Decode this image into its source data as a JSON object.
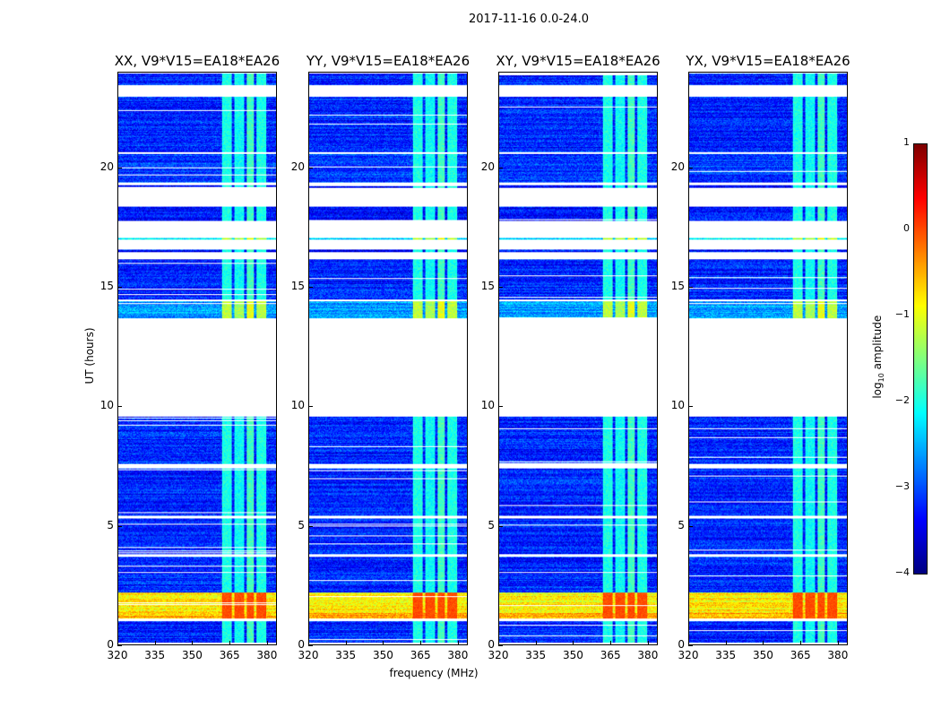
{
  "chart_data": {
    "type": "heatmap",
    "title": "2017-11-16 0.0-24.0",
    "xlabel": "frequency (MHz)",
    "ylabel": "UT (hours)",
    "xlim": [
      320,
      384
    ],
    "ylim": [
      0,
      24
    ],
    "xticks": [
      320,
      335,
      350,
      365,
      380
    ],
    "yticks": [
      0,
      5,
      10,
      15,
      20
    ],
    "panels": [
      {
        "title": "XX, V9*V15=EA18*EA26"
      },
      {
        "title": "YY, V9*V15=EA18*EA26"
      },
      {
        "title": "XY, V9*V15=EA18*EA26"
      },
      {
        "title": "YX, V9*V15=EA18*EA26"
      }
    ],
    "colorbar": {
      "label_prefix": "log",
      "label_sub": "10",
      "label_suffix": " amplitude",
      "range": [
        -4,
        1
      ],
      "ticks": [
        "1",
        "0",
        "−1",
        "−2",
        "−3",
        "−4"
      ],
      "colormap": "jet"
    },
    "time_segments_hours": [
      [
        0.1,
        1.0,
        -3.2
      ],
      [
        1.1,
        1.35,
        -0.5
      ],
      [
        1.35,
        2.2,
        -0.8
      ],
      [
        2.2,
        3.7,
        -3.2
      ],
      [
        3.8,
        5.3,
        -3.2
      ],
      [
        5.4,
        7.4,
        -3.2
      ],
      [
        7.6,
        9.6,
        -3.2
      ],
      [
        13.7,
        14.4,
        -2.6
      ],
      [
        14.5,
        16.2,
        -3.2
      ],
      [
        16.5,
        16.6,
        -3.3
      ],
      [
        17.0,
        17.1,
        -2.3
      ],
      [
        17.8,
        18.4,
        -3.3
      ],
      [
        19.2,
        19.3,
        -3.3
      ],
      [
        19.4,
        20.6,
        -3.1
      ],
      [
        20.7,
        23.0,
        -3.2
      ],
      [
        23.5,
        24.0,
        -3.2
      ]
    ],
    "rfi_channels_mhz": [
      [
        362,
        366,
        -2.0
      ],
      [
        367,
        371,
        -2.1
      ],
      [
        372,
        375,
        -1.8
      ],
      [
        376,
        380,
        -2.0
      ]
    ]
  }
}
